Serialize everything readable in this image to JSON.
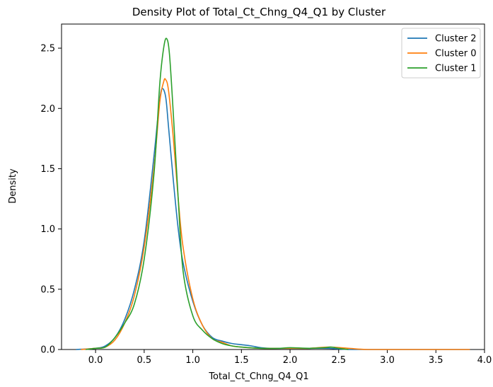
{
  "chart_data": {
    "type": "line",
    "title": "Density Plot of Total_Ct_Chng_Q4_Q1 by Cluster",
    "xlabel": "Total_Ct_Chng_Q4_Q1",
    "ylabel": "Density",
    "xlim": [
      -0.35,
      4.0
    ],
    "ylim": [
      0.0,
      2.7
    ],
    "xticks": [
      0.0,
      0.5,
      1.0,
      1.5,
      2.0,
      2.5,
      3.0,
      3.5,
      4.0
    ],
    "xtick_labels": [
      "0.0",
      "0.5",
      "1.0",
      "1.5",
      "2.0",
      "2.5",
      "3.0",
      "3.5",
      "4.0"
    ],
    "yticks": [
      0.0,
      0.5,
      1.0,
      1.5,
      2.0,
      2.5
    ],
    "ytick_labels": [
      "0.0",
      "0.5",
      "1.0",
      "1.5",
      "2.0",
      "2.5"
    ],
    "grid": false,
    "legend_position": "top-right",
    "series": [
      {
        "name": "Cluster 2",
        "color": "#1f77b4",
        "points": [
          [
            -0.2,
            0.0
          ],
          [
            0.0,
            0.01
          ],
          [
            0.1,
            0.03
          ],
          [
            0.2,
            0.1
          ],
          [
            0.3,
            0.25
          ],
          [
            0.4,
            0.5
          ],
          [
            0.5,
            0.9
          ],
          [
            0.6,
            1.6
          ],
          [
            0.65,
            2.0
          ],
          [
            0.68,
            2.16
          ],
          [
            0.72,
            2.1
          ],
          [
            0.75,
            1.85
          ],
          [
            0.8,
            1.4
          ],
          [
            0.85,
            1.0
          ],
          [
            0.9,
            0.72
          ],
          [
            1.0,
            0.4
          ],
          [
            1.1,
            0.2
          ],
          [
            1.2,
            0.1
          ],
          [
            1.3,
            0.07
          ],
          [
            1.4,
            0.05
          ],
          [
            1.5,
            0.04
          ],
          [
            1.6,
            0.03
          ],
          [
            1.7,
            0.015
          ],
          [
            1.8,
            0.01
          ],
          [
            2.0,
            0.01
          ],
          [
            2.2,
            0.01
          ],
          [
            2.4,
            0.01
          ],
          [
            2.6,
            0.0
          ],
          [
            3.0,
            0.0
          ],
          [
            3.5,
            0.0
          ],
          [
            3.85,
            0.0
          ]
        ]
      },
      {
        "name": "Cluster 0",
        "color": "#ff7f0e",
        "points": [
          [
            -0.15,
            0.0
          ],
          [
            0.0,
            0.01
          ],
          [
            0.1,
            0.02
          ],
          [
            0.2,
            0.08
          ],
          [
            0.3,
            0.22
          ],
          [
            0.4,
            0.45
          ],
          [
            0.5,
            0.85
          ],
          [
            0.6,
            1.5
          ],
          [
            0.66,
            2.05
          ],
          [
            0.7,
            2.22
          ],
          [
            0.72,
            2.24
          ],
          [
            0.75,
            2.15
          ],
          [
            0.8,
            1.75
          ],
          [
            0.85,
            1.25
          ],
          [
            0.9,
            0.85
          ],
          [
            1.0,
            0.42
          ],
          [
            1.1,
            0.2
          ],
          [
            1.2,
            0.09
          ],
          [
            1.3,
            0.06
          ],
          [
            1.4,
            0.03
          ],
          [
            1.5,
            0.02
          ],
          [
            1.7,
            0.01
          ],
          [
            2.0,
            0.01
          ],
          [
            2.2,
            0.01
          ],
          [
            2.4,
            0.02
          ],
          [
            2.6,
            0.01
          ],
          [
            2.8,
            0.0
          ],
          [
            3.2,
            0.0
          ],
          [
            3.6,
            0.0
          ],
          [
            3.85,
            0.0
          ]
        ]
      },
      {
        "name": "Cluster 1",
        "color": "#2ca02c",
        "points": [
          [
            -0.1,
            0.0
          ],
          [
            0.0,
            0.01
          ],
          [
            0.1,
            0.02
          ],
          [
            0.2,
            0.1
          ],
          [
            0.3,
            0.22
          ],
          [
            0.4,
            0.38
          ],
          [
            0.5,
            0.75
          ],
          [
            0.6,
            1.45
          ],
          [
            0.66,
            2.2
          ],
          [
            0.7,
            2.5
          ],
          [
            0.73,
            2.58
          ],
          [
            0.76,
            2.45
          ],
          [
            0.8,
            1.95
          ],
          [
            0.85,
            1.25
          ],
          [
            0.9,
            0.65
          ],
          [
            1.0,
            0.28
          ],
          [
            1.1,
            0.16
          ],
          [
            1.2,
            0.09
          ],
          [
            1.3,
            0.05
          ],
          [
            1.4,
            0.03
          ],
          [
            1.5,
            0.02
          ],
          [
            1.7,
            0.01
          ],
          [
            1.9,
            0.01
          ],
          [
            2.0,
            0.015
          ],
          [
            2.2,
            0.01
          ],
          [
            2.35,
            0.015
          ],
          [
            2.42,
            0.02
          ],
          [
            2.5,
            0.01
          ],
          [
            2.6,
            0.0
          ]
        ]
      }
    ]
  }
}
